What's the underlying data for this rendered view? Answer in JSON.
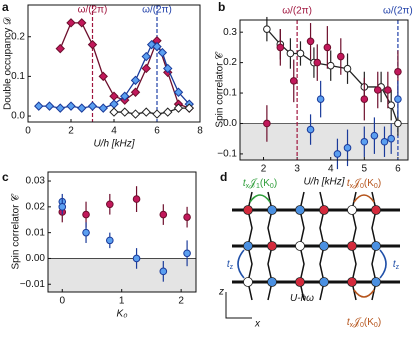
{
  "chart_data": [
    {
      "panel": "a",
      "type": "line",
      "x_label": "U/h [kHz]",
      "y_label": "Double occupancy 𝒟",
      "xlim": [
        0,
        8
      ],
      "xticks": [
        0,
        2,
        4,
        6,
        8
      ],
      "ylim": [
        -0.015,
        0.28
      ],
      "yticks": [
        {
          "value": 0,
          "label": "0.0"
        },
        {
          "value": 0.1,
          "label": "0.1"
        },
        {
          "value": 0.2,
          "label": "0.2"
        }
      ],
      "annotations": [
        {
          "x": 3,
          "text": "ω/(2π)",
          "color": "#a0153e"
        },
        {
          "x": 6,
          "text": "ω/(2π)",
          "color": "#1f3fa8"
        }
      ],
      "series": [
        {
          "color": "#c2185b",
          "stroke": "#6d0e2c",
          "marker": "diamond",
          "filled": true,
          "line": true,
          "x": [
            1.5,
            2,
            2.5,
            3,
            3.5,
            4,
            4.5,
            5,
            5.5,
            6,
            6.5,
            7,
            7.5
          ],
          "values": [
            0.17,
            0.235,
            0.235,
            0.18,
            0.1,
            0.05,
            0.04,
            0.06,
            0.12,
            0.19,
            0.11,
            0.03,
            0.02
          ]
        },
        {
          "color": "#5b9ff0",
          "stroke": "#1a3a9a",
          "marker": "diamond",
          "filled": true,
          "line": true,
          "x": [
            0.5,
            1,
            1.5,
            2,
            2.5,
            3,
            3.5,
            4,
            4.5,
            5,
            5.5,
            5.75,
            6,
            6.25,
            6.5,
            7,
            7.5
          ],
          "values": [
            0.025,
            0.025,
            0.02,
            0.025,
            0.02,
            0.025,
            0.02,
            0.03,
            0.05,
            0.09,
            0.15,
            0.18,
            0.175,
            0.16,
            0.12,
            0.06,
            0.03
          ]
        },
        {
          "color": "#ffffff",
          "stroke": "#222222",
          "marker": "diamond",
          "filled": false,
          "line": true,
          "x": [
            4,
            4.5,
            5,
            5.5,
            6,
            6.5,
            7,
            7.5
          ],
          "values": [
            0.01,
            0.01,
            0.005,
            0.01,
            0.005,
            0.01,
            0.02,
            0.02
          ]
        }
      ]
    },
    {
      "panel": "b",
      "type": "scatter",
      "x_label": "U/h [kHz]",
      "y_label": "Spin correlator 𝒞",
      "xlim": [
        1.3,
        6.3
      ],
      "xticks": [
        2,
        3,
        4,
        5,
        6
      ],
      "ylim": [
        -0.12,
        0.34
      ],
      "yticks": [
        {
          "value": -0.1,
          "label": "−0.1"
        },
        {
          "value": 0,
          "label": "0.0"
        },
        0.1,
        0.2,
        0.3
      ],
      "shade_negative": true,
      "annotations": [
        {
          "x": 3,
          "text": "ω/(2π)",
          "color": "#a0153e"
        },
        {
          "x": 6,
          "text": "ω/(2π)",
          "color": "#1f3fa8"
        }
      ],
      "series": [
        {
          "color": "#ffffff",
          "stroke": "#222222",
          "marker": "circle",
          "filled": false,
          "line": true,
          "x": [
            2.1,
            2.5,
            2.8,
            3.1,
            3.5,
            4,
            4.5,
            5,
            5.5,
            5.8,
            6
          ],
          "values": [
            0.31,
            0.26,
            0.23,
            0.23,
            0.2,
            0.19,
            0.18,
            0.12,
            0.12,
            0.06,
            0
          ],
          "errors": [
            0.04,
            0.05,
            0.05,
            0.04,
            0.05,
            0.05,
            0.05,
            0.05,
            0.05,
            0.05,
            0.04
          ]
        },
        {
          "color": "#c2185b",
          "stroke": "#6d0e2c",
          "marker": "circle",
          "filled": true,
          "line": false,
          "x": [
            2.1,
            2.5,
            2.9,
            3.4,
            3.6,
            3.9,
            4.3,
            5,
            5.4,
            5.7,
            6
          ],
          "values": [
            0,
            0.25,
            0.14,
            0.27,
            0.2,
            0.25,
            0.22,
            0.08,
            0.11,
            0.11,
            0.17
          ],
          "errors": [
            0.06,
            0.06,
            0.07,
            0.06,
            0.06,
            0.07,
            0.06,
            0.07,
            0.06,
            0.06,
            0.07
          ]
        },
        {
          "color": "#5b9ff0",
          "stroke": "#1a3a9a",
          "marker": "circle",
          "filled": true,
          "line": false,
          "x": [
            3.4,
            3.7,
            4.2,
            4.5,
            5,
            5.3,
            5.6,
            5.8,
            6
          ],
          "values": [
            -0.02,
            0.08,
            -0.1,
            -0.08,
            -0.06,
            -0.04,
            -0.06,
            -0.05,
            0.08
          ],
          "errors": [
            0.05,
            0.06,
            0.05,
            0.06,
            0.05,
            0.06,
            0.05,
            0.05,
            0.06
          ]
        }
      ]
    },
    {
      "panel": "c",
      "type": "scatter",
      "x_label": "K₀",
      "y_label": "Spin correlator 𝒞",
      "xlim": [
        -0.24,
        2.25
      ],
      "xticks": [
        0,
        1,
        2
      ],
      "ylim": [
        -0.013,
        0.0335
      ],
      "yticks": [
        {
          "value": -0.01,
          "label": "−0.01"
        },
        {
          "value": 0,
          "label": "0.00"
        },
        0.01,
        0.02,
        0.03
      ],
      "shade_negative": true,
      "series": [
        {
          "color": "#c2185b",
          "stroke": "#6d0e2c",
          "marker": "circle",
          "filled": true,
          "line": false,
          "x": [
            0,
            0.4,
            0.8,
            1.25,
            1.7,
            2.1
          ],
          "values": [
            0.018,
            0.017,
            0.021,
            0.023,
            0.017,
            0.016
          ],
          "errors": [
            0.004,
            0.005,
            0.004,
            0.005,
            0.004,
            0.004
          ]
        },
        {
          "color": "#5b9ff0",
          "stroke": "#1a3a9a",
          "marker": "circle",
          "filled": true,
          "line": false,
          "x": [
            0,
            0,
            0.4,
            0.8,
            1.25,
            1.7,
            2.1
          ],
          "values": [
            0.022,
            0.02,
            0.01,
            0.007,
            0,
            -0.005,
            0.002
          ],
          "errors": [
            0.003,
            0.003,
            0.004,
            0.003,
            0.004,
            0.004,
            0.005
          ]
        }
      ]
    }
  ],
  "diagram": {
    "panel": "d",
    "labels": [
      {
        "parts": [
          "t",
          "x",
          "𝒥",
          "1",
          "(K",
          "0",
          ")"
        ],
        "color": "#2e9e3a"
      },
      {
        "parts": [
          "t",
          "x",
          "𝒥",
          "0",
          "(K",
          "0",
          ")"
        ],
        "color": "#b5541b"
      },
      {
        "parts": [
          "t",
          "z"
        ],
        "color": "#1f4fa8"
      },
      {
        "parts": [
          "t",
          "z"
        ],
        "color": "#1f4fa8"
      },
      {
        "parts": [
          "t",
          "x",
          "𝒥",
          "0",
          "(K",
          "0",
          ")"
        ],
        "color": "#b5541b"
      },
      {
        "parts": [
          "U-ħω"
        ],
        "color": "#111111"
      }
    ],
    "axes": [
      "z",
      "x"
    ]
  }
}
